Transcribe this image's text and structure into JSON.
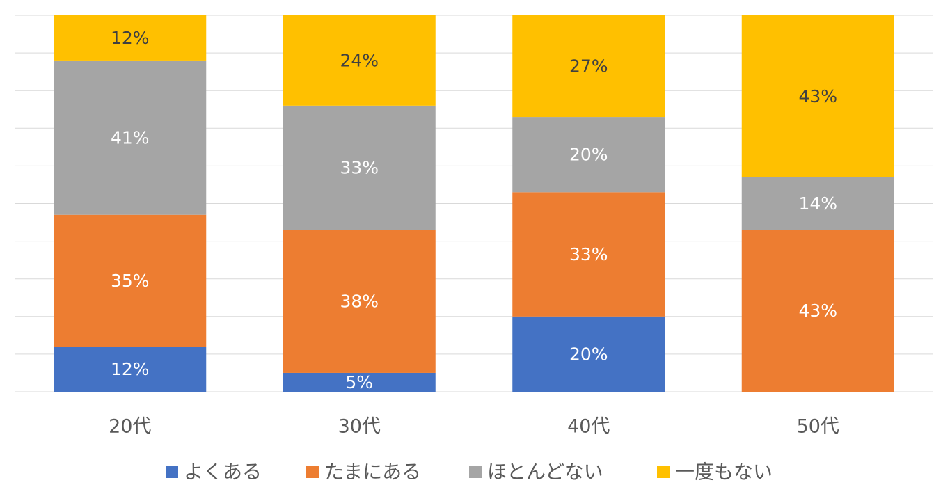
{
  "chart_data": {
    "type": "bar",
    "stacked": true,
    "percent_stacked": true,
    "categories": [
      "20代",
      "30代",
      "40代",
      "50代"
    ],
    "series": [
      {
        "name": "よくある",
        "color": "#4472C4",
        "label_color": "#FFFFFF",
        "values": [
          12,
          5,
          20,
          0
        ],
        "labels": [
          "12%",
          "5%",
          "20%",
          ""
        ]
      },
      {
        "name": "たまにある",
        "color": "#ED7D31",
        "label_color": "#FFFFFF",
        "values": [
          35,
          38,
          33,
          43
        ],
        "labels": [
          "35%",
          "38%",
          "33%",
          "43%"
        ]
      },
      {
        "name": "ほとんどない",
        "color": "#A5A5A5",
        "label_color": "#FFFFFF",
        "values": [
          41,
          33,
          20,
          14
        ],
        "labels": [
          "41%",
          "33%",
          "20%",
          "14%"
        ]
      },
      {
        "name": "一度もない",
        "color": "#FFC000",
        "label_color": "#404040",
        "values": [
          12,
          24,
          27,
          43
        ],
        "labels": [
          "12%",
          "24%",
          "27%",
          "43%"
        ]
      }
    ],
    "ylim": [
      0,
      100
    ],
    "grid": true,
    "legend": "bottom",
    "title": "",
    "xlabel": "",
    "ylabel": ""
  }
}
